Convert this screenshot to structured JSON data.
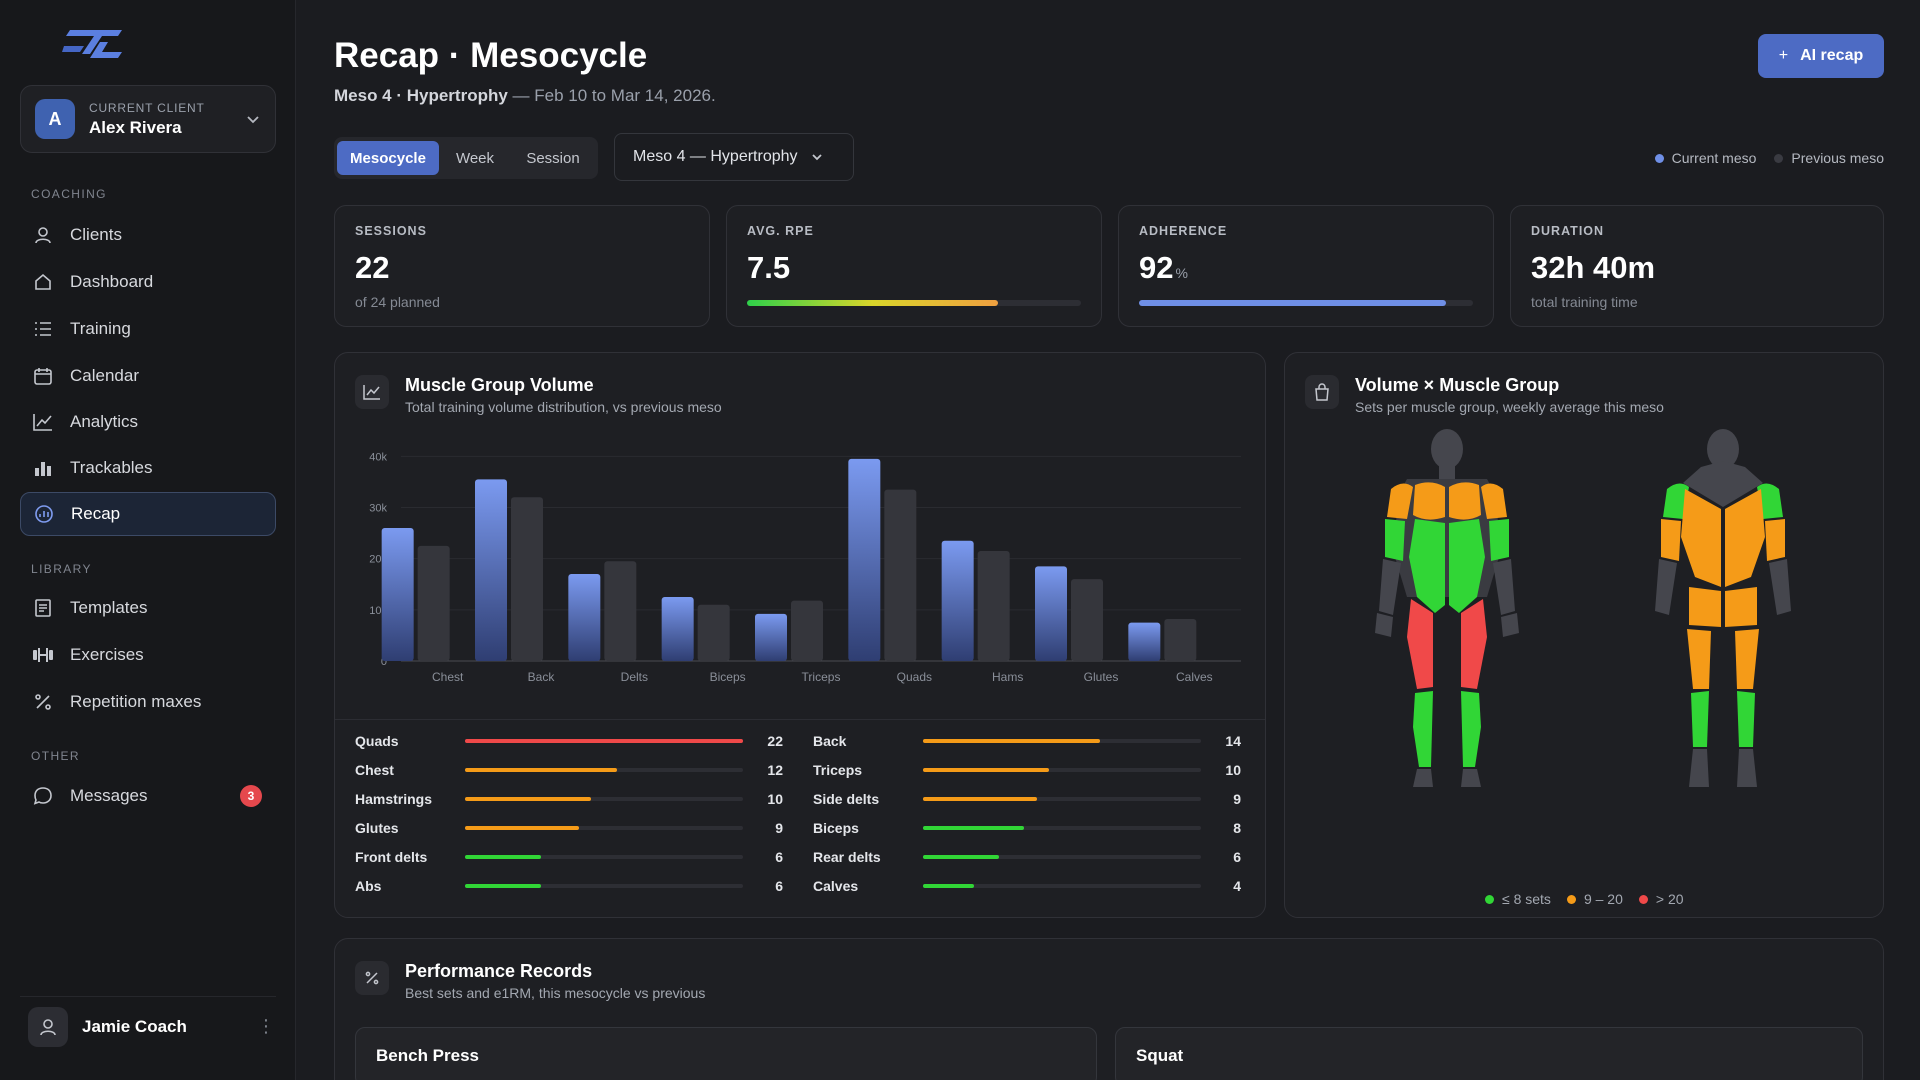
{
  "colors": {
    "accent": "#4d6bc4",
    "current": "#6f8fe6",
    "previous": "#3a3b42",
    "low": "#31d636",
    "mid": "#f59b18",
    "high": "#f04949"
  },
  "sidebar": {
    "client": {
      "caption": "CURRENT CLIENT",
      "name": "Alex Rivera",
      "initial": "A"
    },
    "sections": [
      "COACHING",
      "LIBRARY",
      "OTHER"
    ],
    "items": [
      {
        "label": "Clients",
        "icon": "user-icon"
      },
      {
        "label": "Dashboard",
        "icon": "home-icon"
      },
      {
        "label": "Training",
        "icon": "list-icon"
      },
      {
        "label": "Calendar",
        "icon": "calendar-icon"
      },
      {
        "label": "Analytics",
        "icon": "line-chart-icon"
      },
      {
        "label": "Trackables",
        "icon": "bar-chart-icon"
      },
      {
        "label": "Recap",
        "icon": "recap-icon"
      },
      {
        "label": "Templates",
        "icon": "template-icon"
      },
      {
        "label": "Exercises",
        "icon": "dumbbell-icon"
      },
      {
        "label": "Repetition maxes",
        "icon": "percent-icon"
      },
      {
        "label": "Messages",
        "icon": "chat-icon",
        "badge": "3"
      }
    ],
    "user": {
      "name": "Jamie Coach"
    }
  },
  "header": {
    "title": "Recap · Mesocycle",
    "sub_bold": "Meso 4 · Hypertrophy",
    "sub_rest": " — Feb 10 to Mar 14, 2026.",
    "ai_label": "AI recap"
  },
  "controls": {
    "tabs": [
      "Mesocycle",
      "Week",
      "Session"
    ],
    "dropdown": "Meso 4 — Hypertrophy",
    "legend": [
      "Current meso",
      "Previous meso"
    ]
  },
  "stats": [
    {
      "caption": "SESSIONS",
      "value": "22",
      "unit": "",
      "sub": "of 24 planned"
    },
    {
      "caption": "AVG. RPE",
      "value": "7.5",
      "unit": "",
      "sub": "",
      "progress": 0.75
    },
    {
      "caption": "ADHERENCE",
      "value": "92",
      "unit": "%",
      "sub": "",
      "progress": 0.92
    },
    {
      "caption": "DURATION",
      "value": "32h 40m",
      "unit": "",
      "sub": "total training time"
    }
  ],
  "volume_card": {
    "title": "Muscle Group Volume",
    "sub": "Total training volume distribution, vs previous meso"
  },
  "chart_data": {
    "type": "bar",
    "categories": [
      "Chest",
      "Back",
      "Delts",
      "Biceps",
      "Triceps",
      "Quads",
      "Hams",
      "Glutes",
      "Calves"
    ],
    "series": [
      {
        "name": "Current meso",
        "values": [
          26000,
          35500,
          17000,
          12500,
          9200,
          39500,
          23500,
          18500,
          7500
        ]
      },
      {
        "name": "Previous meso",
        "values": [
          22500,
          32000,
          19500,
          11000,
          11800,
          33500,
          21500,
          16000,
          8200
        ]
      }
    ],
    "yticks": [
      "0",
      "10k",
      "20k",
      "30k",
      "40k"
    ],
    "ylim": [
      0,
      43000
    ]
  },
  "sets_list": [
    {
      "name": "Quads",
      "value": 22,
      "level": "high"
    },
    {
      "name": "Chest",
      "value": 12,
      "level": "mid"
    },
    {
      "name": "Hamstrings",
      "value": 10,
      "level": "mid"
    },
    {
      "name": "Glutes",
      "value": 9,
      "level": "mid"
    },
    {
      "name": "Front delts",
      "value": 6,
      "level": "low"
    },
    {
      "name": "Abs",
      "value": 6,
      "level": "low"
    },
    {
      "name": "Back",
      "value": 14,
      "level": "mid"
    },
    {
      "name": "Triceps",
      "value": 10,
      "level": "mid"
    },
    {
      "name": "Side delts",
      "value": 9,
      "level": "mid"
    },
    {
      "name": "Biceps",
      "value": 8,
      "level": "low"
    },
    {
      "name": "Rear delts",
      "value": 6,
      "level": "low"
    },
    {
      "name": "Calves",
      "value": 4,
      "level": "low"
    }
  ],
  "body_card": {
    "title": "Volume × Muscle Group",
    "sub": "Sets per muscle group, weekly average this meso",
    "legend": [
      "≤ 8 sets",
      "9 – 20",
      "> 20"
    ]
  },
  "records": {
    "title": "Performance Records",
    "sub": "Best sets and e1RM, this mesocycle vs previous",
    "items": [
      "Bench Press",
      "Squat"
    ]
  }
}
